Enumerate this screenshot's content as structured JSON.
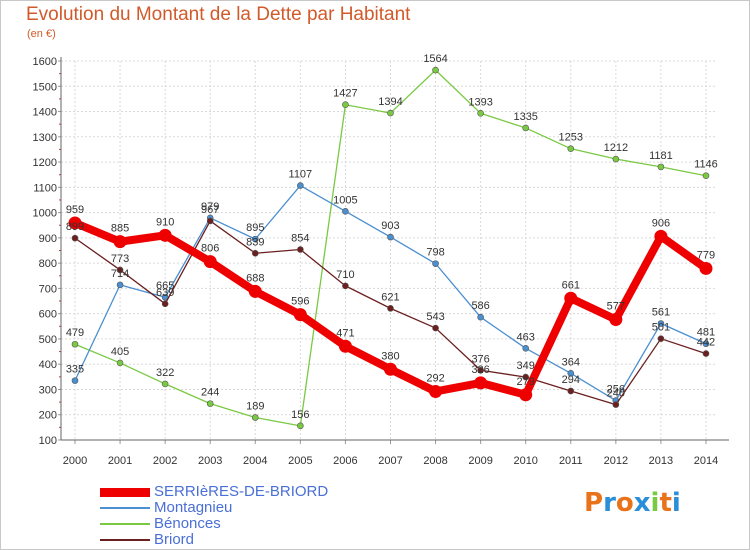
{
  "title": "Evolution du Montant de la Dette par Habitant",
  "subtitle": "(en €)",
  "logo_text": "Proxiti",
  "chart_data": {
    "type": "line",
    "title": "Evolution du Montant de la Dette par Habitant",
    "ylabel": "(en €)",
    "xlabel": "",
    "x": [
      "2000",
      "2001",
      "2002",
      "2003",
      "2004",
      "2005",
      "2006",
      "2007",
      "2008",
      "2009",
      "2010",
      "2011",
      "2012",
      "2013",
      "2014"
    ],
    "ylim": [
      100,
      1600
    ],
    "yticks": [
      "100",
      "200",
      "300",
      "400",
      "500",
      "600",
      "700",
      "800",
      "900",
      "1000",
      "1100",
      "1200",
      "1300",
      "1400",
      "1500",
      "1600"
    ],
    "grid": true,
    "legend_position": "bottom-left",
    "series": [
      {
        "name": "SERRIèRES-DE-BRIORD",
        "color": "#ee0000",
        "values": [
          959,
          885,
          910,
          806,
          688,
          596,
          471,
          380,
          292,
          326,
          279,
          661,
          577,
          906,
          779
        ],
        "labels": [
          "959",
          "885",
          "910",
          "806",
          "688",
          "596",
          "471",
          "380",
          "292",
          "326",
          "279",
          "661",
          "577",
          "906",
          "779"
        ]
      },
      {
        "name": "Montagnieu",
        "color": "#4a8fd0",
        "values": [
          335,
          714,
          665,
          979,
          895,
          1107,
          1005,
          903,
          798,
          586,
          463,
          364,
          256,
          561,
          481
        ],
        "labels": [
          "335",
          "714",
          "665",
          "979",
          "895",
          "1107",
          "1005",
          "903",
          "798",
          "586",
          "463",
          "364",
          "256",
          "561",
          "481"
        ]
      },
      {
        "name": "Bénonces",
        "color": "#7ac943",
        "values": [
          479,
          405,
          322,
          244,
          189,
          156,
          1427,
          1394,
          1564,
          1393,
          1335,
          1253,
          1212,
          1181,
          1146
        ],
        "labels": [
          "479",
          "405",
          "322",
          "244",
          "189",
          "156",
          "1427",
          "1394",
          "1564",
          "1393",
          "1335",
          "1253",
          "1212",
          "1181",
          "1146"
        ]
      },
      {
        "name": "Briord",
        "color": "#6b1f1f",
        "values": [
          899,
          773,
          639,
          967,
          839,
          854,
          710,
          621,
          543,
          376,
          349,
          294,
          240,
          501,
          442
        ],
        "labels": [
          "899",
          "773",
          "639",
          "967",
          "839",
          "854",
          "710",
          "621",
          "543",
          "376",
          "349",
          "294",
          "240",
          "501",
          "442"
        ]
      }
    ]
  }
}
